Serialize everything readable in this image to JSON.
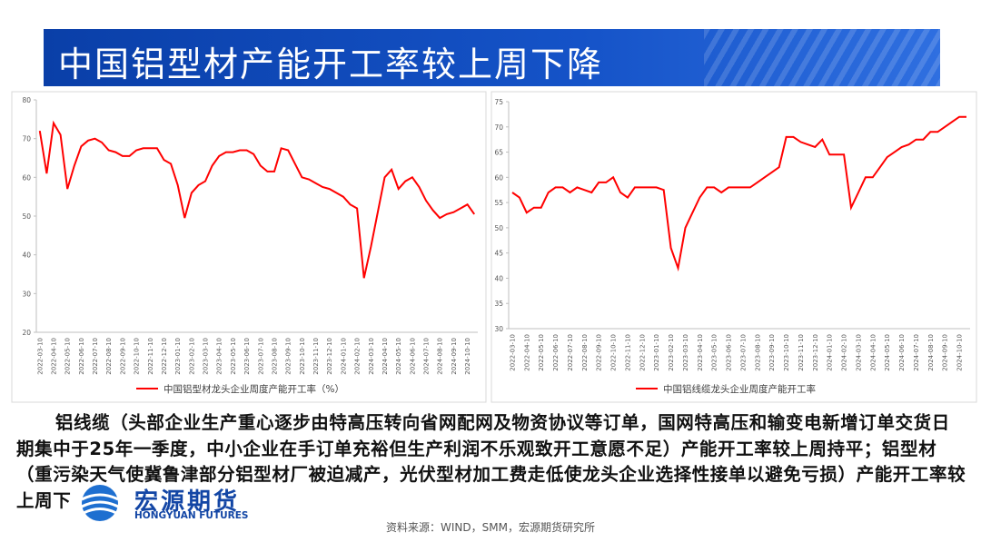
{
  "slide": {
    "title": "中国铝型材产能开工率较上周下降",
    "paragraph": "铝线缆（头部企业生产重心逐步由特高压转向省网配网及物资协议等订单，国网特高压和输变电新增订单交货日期集中于25年一季度，中小企业在手订单充裕但生产利润不乐观致开工意愿不足）产能开工率较上周持平；铝型材（重污染天气使冀鲁津部分铝型材厂被迫减产，光伏型材加工费走低使龙头企业选择性接单以避免亏损）产能开工率较上周下降。",
    "logo_cn": "宏源期货",
    "logo_en": "HONGYUAN FUTURES",
    "source": "资料来源：WIND，SMM，宏源期货研究所"
  },
  "chart_data": [
    {
      "type": "line",
      "legend": "bottom",
      "ylim": [
        20,
        80
      ],
      "yticks": [
        20,
        30,
        40,
        50,
        60,
        70,
        80
      ],
      "categories": [
        "2022-03-10",
        null,
        "2022-04-10",
        null,
        "2022-05-10",
        null,
        "2022-06-10",
        null,
        "2022-07-10",
        null,
        "2022-08-10",
        null,
        "2022-09-10",
        null,
        "2022-10-10",
        null,
        "2022-11-10",
        null,
        "2022-12-10",
        null,
        "2023-01-10",
        null,
        "2023-02-10",
        null,
        "2023-03-10",
        null,
        "2023-04-10",
        null,
        "2023-05-10",
        null,
        "2023-06-10",
        null,
        "2023-07-10",
        null,
        "2023-08-10",
        null,
        "2023-09-10",
        null,
        "2023-10-10",
        null,
        "2023-11-10",
        null,
        "2023-12-10",
        null,
        "2024-01-10",
        null,
        "2024-02-10",
        null,
        "2024-03-10",
        null,
        "2024-04-10",
        null,
        "2024-05-10",
        null,
        "2024-06-10",
        null,
        "2024-07-10",
        null,
        "2024-08-10",
        null,
        "2024-09-10",
        null,
        "2024-10-10",
        null
      ],
      "series": [
        {
          "name": "中国铝型材龙头企业周度产能开工率（%）",
          "color": "#ff0000",
          "values": [
            72,
            61,
            74,
            71,
            57,
            63,
            68,
            69.5,
            70,
            69,
            67,
            66.5,
            65.5,
            65.5,
            67,
            67.5,
            67.5,
            67.5,
            64.5,
            63.5,
            58,
            49.5,
            56,
            58,
            59,
            63,
            65.5,
            66.5,
            66.5,
            67,
            67,
            66,
            63,
            61.5,
            61.5,
            67.5,
            67,
            63.5,
            60,
            59.5,
            58.5,
            57.5,
            57,
            56,
            55,
            53,
            52,
            34,
            42,
            51,
            60,
            62,
            57,
            59,
            60,
            57.5,
            54,
            51.5,
            49.5,
            50.5,
            51,
            52,
            53,
            50.5
          ]
        }
      ]
    },
    {
      "type": "line",
      "legend": "bottom",
      "ylim": [
        30,
        75
      ],
      "yticks": [
        30,
        35,
        40,
        45,
        50,
        55,
        60,
        65,
        70,
        75
      ],
      "categories": [
        "2022-03-10",
        null,
        "2022-04-10",
        null,
        "2022-05-10",
        null,
        "2022-06-10",
        null,
        "2022-07-10",
        null,
        "2022-08-10",
        null,
        "2022-09-10",
        null,
        "2022-10-10",
        null,
        "2022-11-10",
        null,
        "2022-12-10",
        null,
        "2023-01-10",
        null,
        "2023-02-10",
        null,
        "2023-03-10",
        null,
        "2023-04-10",
        null,
        "2023-05-10",
        null,
        "2023-06-10",
        null,
        "2023-07-10",
        null,
        "2023-08-10",
        null,
        "2023-09-10",
        null,
        "2023-10-10",
        null,
        "2023-11-10",
        null,
        "2023-12-10",
        null,
        "2024-01-10",
        null,
        "2024-02-10",
        null,
        "2024-03-10",
        null,
        "2024-04-10",
        null,
        "2024-05-10",
        null,
        "2024-06-10",
        null,
        "2024-07-10",
        null,
        "2024-08-10",
        null,
        "2024-09-10",
        null,
        "2024-10-10",
        null
      ],
      "series": [
        {
          "name": "中国铝线缆龙头企业周度产能开工率",
          "color": "#ff0000",
          "values": [
            57,
            56,
            53,
            54,
            54,
            57,
            58,
            58,
            57,
            58,
            57.5,
            57,
            59,
            59,
            60,
            57,
            56,
            58,
            58,
            58,
            58,
            57.5,
            46,
            42,
            50,
            53,
            56,
            58,
            58,
            57,
            58,
            58,
            58,
            58,
            59,
            60,
            61,
            62,
            68,
            68,
            67,
            66.5,
            66,
            67.5,
            64.5,
            64.5,
            64.5,
            54,
            57,
            60,
            60,
            62,
            64,
            65,
            66,
            66.5,
            67.5,
            67.5,
            69,
            69,
            70,
            71,
            72,
            72
          ]
        }
      ]
    }
  ]
}
